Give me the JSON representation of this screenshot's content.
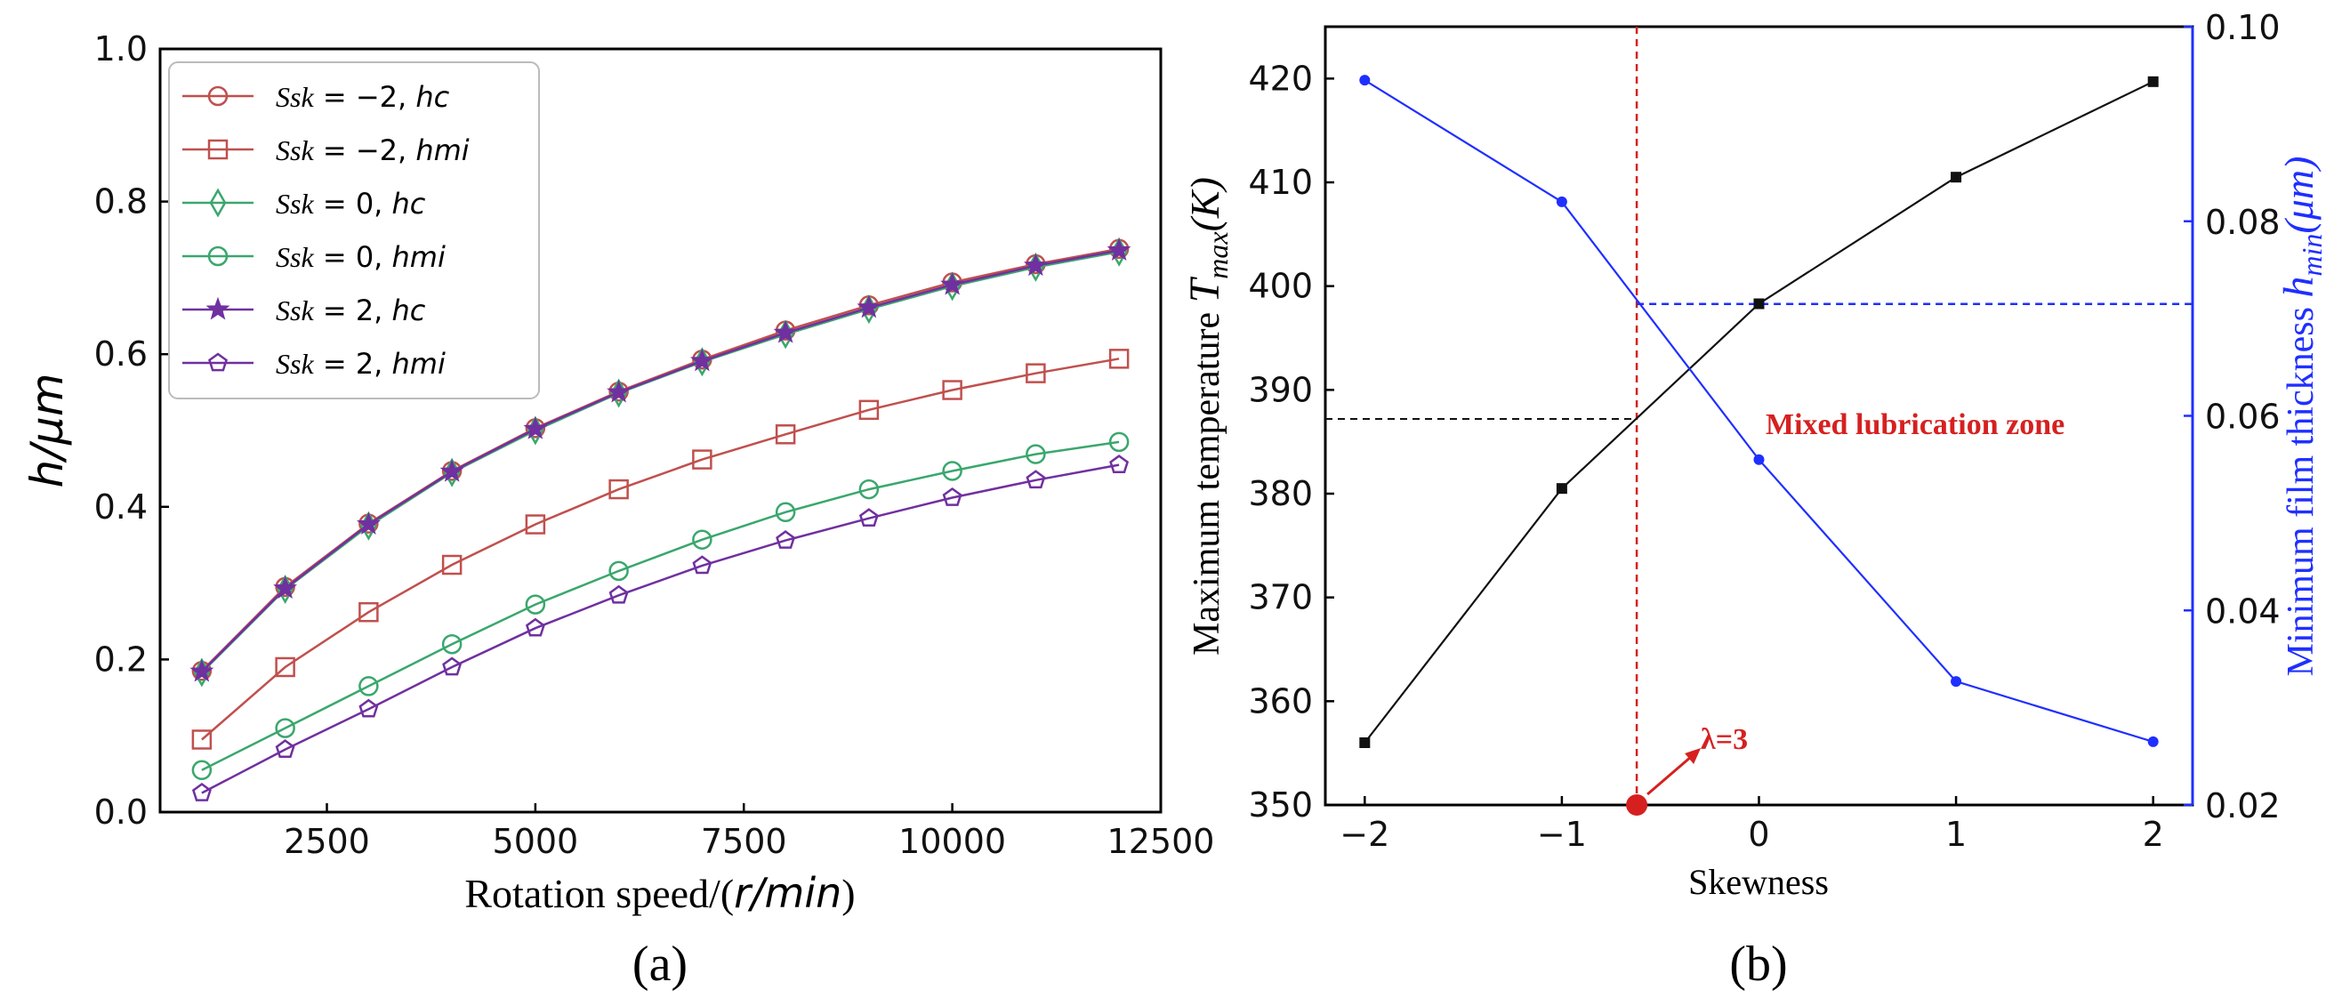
{
  "chart_data": [
    {
      "type": "line",
      "panel_label": "(a)",
      "title": "",
      "xlabel": "Rotation speed/(r/min)",
      "xlabel_prefix": "Rotation speed/(",
      "xlabel_italic": "r/min",
      "xlabel_suffix": ")",
      "ylabel": "h/μm",
      "xlim": [
        500,
        12500
      ],
      "ylim": [
        0.0,
        1.0
      ],
      "xticks": [
        2500,
        5000,
        7500,
        10000,
        12500
      ],
      "xtick_labels": [
        "2500",
        "5000",
        "7500",
        "10000",
        "12500"
      ],
      "yticks": [
        0.0,
        0.2,
        0.4,
        0.6,
        0.8,
        1.0
      ],
      "ytick_labels": [
        "0.0",
        "0.2",
        "0.4",
        "0.6",
        "0.8",
        "1.0"
      ],
      "legend_position": "top-left",
      "x": [
        1000,
        2000,
        3000,
        4000,
        5000,
        6000,
        7000,
        8000,
        9000,
        10000,
        11000,
        12000
      ],
      "series": [
        {
          "name": "Ssk = −2, hc",
          "label_ssk": "Ssk",
          "label_rest": " = −2, ",
          "label_h": "hc",
          "color": "#c0504d",
          "marker": "circle",
          "values": [
            0.185,
            0.295,
            0.378,
            0.447,
            0.503,
            0.551,
            0.593,
            0.631,
            0.664,
            0.694,
            0.718,
            0.738
          ]
        },
        {
          "name": "Ssk = −2, hmi",
          "label_ssk": "Ssk",
          "label_rest": " = −2, ",
          "label_h": "hmi",
          "color": "#c0504d",
          "marker": "square",
          "values": [
            0.095,
            0.19,
            0.262,
            0.324,
            0.377,
            0.423,
            0.462,
            0.495,
            0.527,
            0.553,
            0.575,
            0.594
          ]
        },
        {
          "name": "Ssk = 0, hc",
          "label_ssk": "Ssk",
          "label_rest": " = 0, ",
          "label_h": "hc",
          "color": "#3aa76d",
          "marker": "diamond",
          "values": [
            0.183,
            0.292,
            0.375,
            0.445,
            0.5,
            0.549,
            0.59,
            0.626,
            0.659,
            0.689,
            0.714,
            0.734
          ]
        },
        {
          "name": "Ssk = 0, hmi",
          "label_ssk": "Ssk",
          "label_rest": " = 0, ",
          "label_h": "hmi",
          "color": "#3aa76d",
          "marker": "circle",
          "values": [
            0.055,
            0.11,
            0.165,
            0.22,
            0.272,
            0.316,
            0.357,
            0.393,
            0.423,
            0.447,
            0.469,
            0.485
          ]
        },
        {
          "name": "Ssk = 2, hc",
          "label_ssk": "Ssk",
          "label_rest": " = 2, ",
          "label_h": "hc",
          "color": "#7030a0",
          "marker": "star",
          "values": [
            0.184,
            0.293,
            0.377,
            0.446,
            0.502,
            0.55,
            0.591,
            0.628,
            0.661,
            0.691,
            0.716,
            0.736
          ]
        },
        {
          "name": "Ssk = 2, hmi",
          "label_ssk": "Ssk",
          "label_rest": " = 2, ",
          "label_h": "hmi",
          "color": "#7030a0",
          "marker": "pentagon",
          "values": [
            0.025,
            0.082,
            0.135,
            0.19,
            0.241,
            0.284,
            0.323,
            0.356,
            0.385,
            0.412,
            0.435,
            0.455
          ]
        }
      ]
    },
    {
      "type": "line",
      "panel_label": "(b)",
      "title": "",
      "xlabel": "Skewness",
      "ylabel": "Maximum temperature T_max(K)",
      "ylabel_main": "Maximum temperature ",
      "ylabel_sym": "T",
      "ylabel_sub": "max",
      "ylabel_unit": "(K)",
      "y2label": "Minimum film thickness h_min(μm)",
      "y2label_main": "Minimum film thickness ",
      "y2label_sym": "h",
      "y2label_sub": "min",
      "y2label_unit": "(μm)",
      "xlim": [
        -2.2,
        2.2
      ],
      "ylim": [
        350,
        425
      ],
      "y2lim": [
        0.02,
        0.1
      ],
      "xticks": [
        -2,
        -1,
        0,
        1,
        2
      ],
      "xtick_labels": [
        "−2",
        "−1",
        "0",
        "1",
        "2"
      ],
      "yticks": [
        350,
        360,
        370,
        380,
        390,
        400,
        410,
        420
      ],
      "ytick_labels": [
        "350",
        "360",
        "370",
        "380",
        "390",
        "400",
        "410",
        "420"
      ],
      "y2ticks": [
        0.02,
        0.04,
        0.06,
        0.08,
        0.1
      ],
      "y2tick_labels": [
        "0.02",
        "0.04",
        "0.06",
        "0.08",
        "0.10"
      ],
      "x": [
        -2,
        -1,
        0,
        1,
        2
      ],
      "series": [
        {
          "name": "Maximum temperature",
          "axis": "left",
          "color": "#111111",
          "marker": "square",
          "values": [
            356,
            380.5,
            398.3,
            410.5,
            419.7
          ]
        },
        {
          "name": "Minimum film thickness",
          "axis": "right",
          "color": "#1f2fff",
          "marker": "circle",
          "values": [
            0.0945,
            0.082,
            0.0555,
            0.0327,
            0.0265
          ]
        }
      ],
      "reference_lines": {
        "vertical_x": -0.62,
        "horizontal_left_y": 387.2,
        "horizontal_right_y2": 0.0715
      },
      "annotations": {
        "zone_label": "Mixed lubrication zone",
        "lambda_label": "λ=3",
        "zone_color": "#d62020"
      }
    }
  ]
}
